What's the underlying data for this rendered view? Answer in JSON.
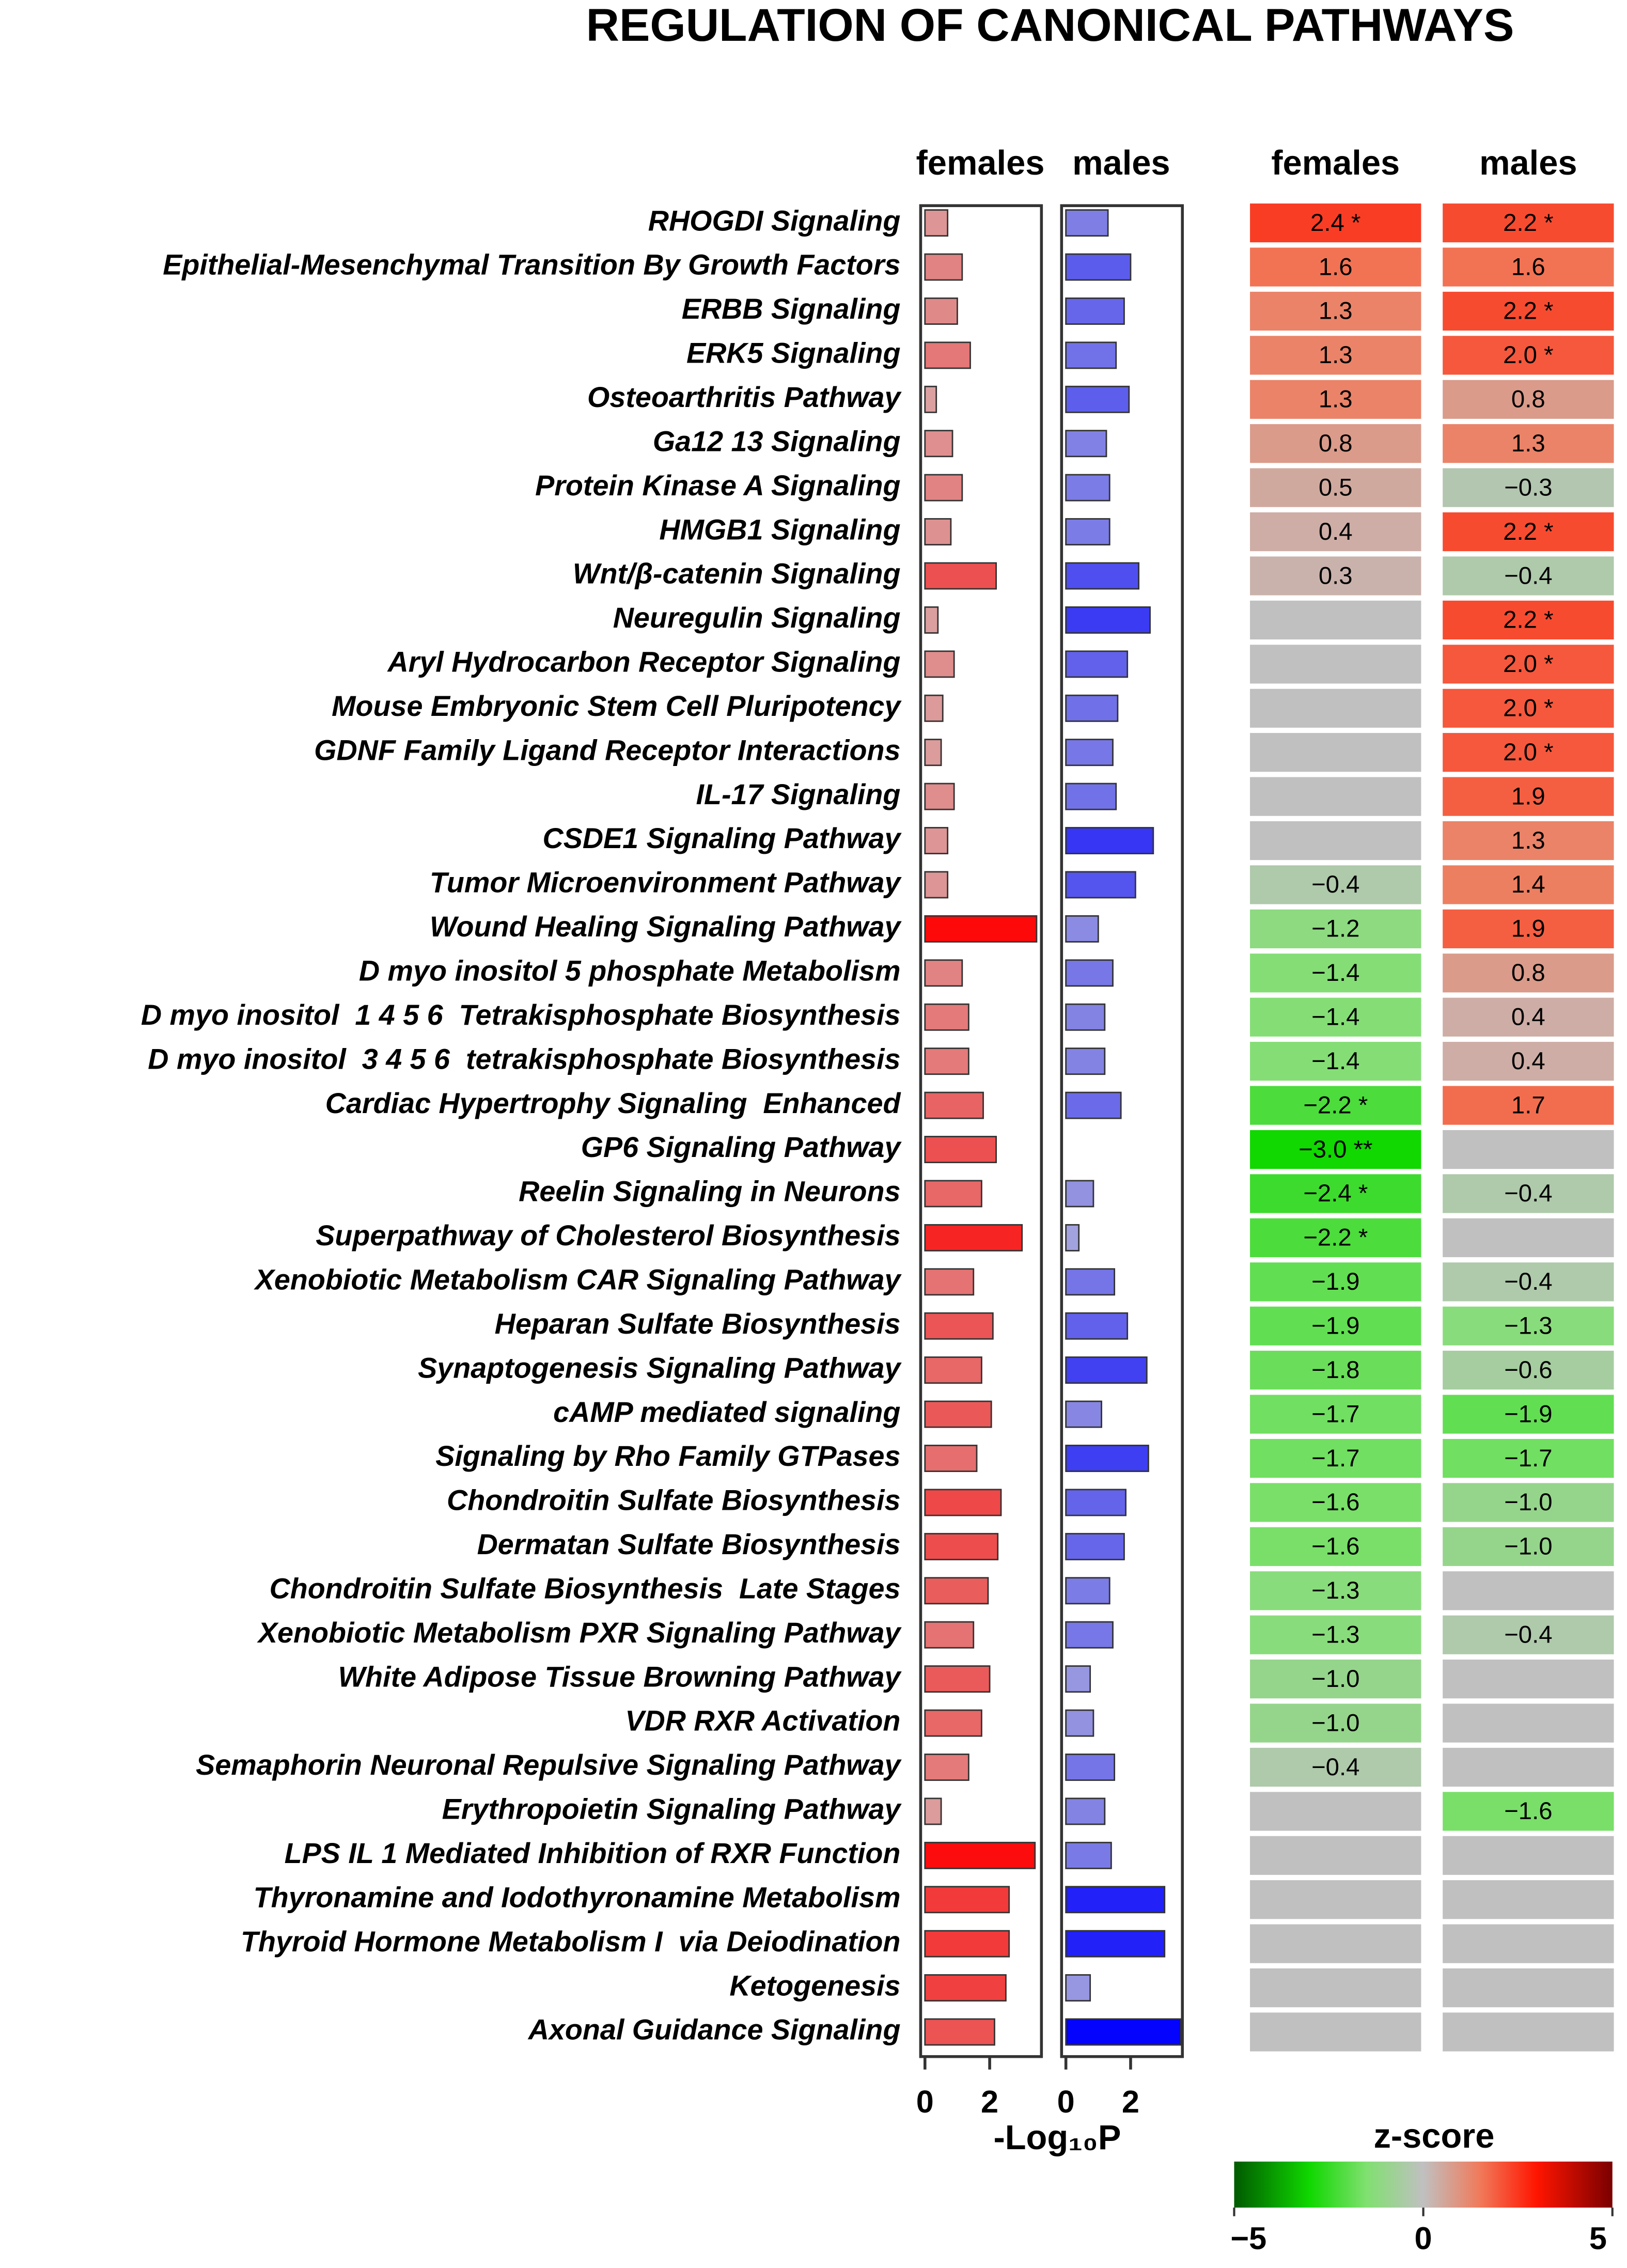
{
  "title": "REGULATION OF CANONICAL PATHWAYS",
  "xlabel": "-Log₁₀P",
  "chart_data": [
    {
      "type": "bar",
      "orientation": "horizontal",
      "title": "females",
      "categories": [
        "RHOGDI Signaling",
        "Epithelial-Mesenchymal Transition By Growth Factors",
        "ERBB Signaling",
        "ERK5 Signaling",
        "Osteoarthritis Pathway",
        "Ga12 13 Signaling",
        "Protein Kinase A Signaling",
        "HMGB1 Signaling",
        "Wnt/β-catenin Signaling",
        "Neuregulin Signaling",
        "Aryl Hydrocarbon Receptor Signaling",
        "Mouse Embryonic Stem Cell Pluripotency",
        "GDNF Family Ligand Receptor Interactions",
        "IL-17 Signaling",
        "CSDE1 Signaling Pathway",
        "Tumor Microenvironment Pathway",
        "Wound Healing Signaling Pathway",
        "D myo inositol 5 phosphate Metabolism",
        "D myo inositol  1 4 5 6  Tetrakisphosphate Biosynthesis",
        "D myo inositol  3 4 5 6  tetrakisphosphate Biosynthesis",
        "Cardiac Hypertrophy Signaling  Enhanced",
        "GP6 Signaling Pathway",
        "Reelin Signaling in Neurons",
        "Superpathway of Cholesterol Biosynthesis",
        "Xenobiotic Metabolism CAR Signaling Pathway",
        "Heparan Sulfate Biosynthesis",
        "Synaptogenesis Signaling Pathway",
        "cAMP mediated signaling",
        "Signaling by Rho Family GTPases",
        "Chondroitin Sulfate Biosynthesis",
        "Dermatan Sulfate Biosynthesis",
        "Chondroitin Sulfate Biosynthesis  Late Stages",
        "Xenobiotic Metabolism PXR Signaling Pathway",
        "White Adipose Tissue Browning Pathway",
        "VDR RXR Activation",
        "Semaphorin Neuronal Repulsive Signaling Pathway",
        "Erythropoietin Signaling Pathway",
        "LPS IL 1 Mediated Inhibition of RXR Function",
        "Thyronamine and Iodothyronamine Metabolism",
        "Thyroid Hormone Metabolism I  via Deiodination",
        "Ketogenesis",
        "Axonal Guidance Signaling"
      ],
      "values": [
        0.7,
        1.15,
        1.0,
        1.4,
        0.35,
        0.85,
        1.15,
        0.8,
        2.2,
        0.4,
        0.9,
        0.55,
        0.5,
        0.9,
        0.7,
        0.7,
        3.45,
        1.15,
        1.35,
        1.35,
        1.8,
        2.2,
        1.75,
        3.0,
        1.5,
        2.1,
        1.75,
        2.05,
        1.6,
        2.35,
        2.25,
        1.95,
        1.5,
        2.0,
        1.75,
        1.35,
        0.5,
        3.4,
        2.6,
        2.6,
        2.5,
        2.15
      ],
      "color_range": [
        "#d9a9a9",
        "#ff0000"
      ],
      "xlim": [
        0,
        3.6
      ],
      "xticks": [
        0,
        2
      ]
    },
    {
      "type": "bar",
      "orientation": "horizontal",
      "title": "males",
      "values": [
        1.3,
        2.0,
        1.8,
        1.55,
        1.95,
        1.25,
        1.35,
        1.35,
        2.25,
        2.6,
        1.9,
        1.6,
        1.45,
        1.55,
        2.7,
        2.15,
        1.0,
        1.45,
        1.2,
        1.2,
        1.7,
        null,
        0.85,
        0.4,
        1.5,
        1.9,
        2.5,
        1.1,
        2.55,
        1.85,
        1.8,
        1.35,
        1.45,
        0.75,
        0.85,
        1.5,
        1.2,
        1.4,
        3.05,
        3.05,
        0.75,
        3.55
      ],
      "color_range": [
        "#acacdc",
        "#0000ff"
      ],
      "xlim": [
        0,
        3.6
      ],
      "xticks": [
        0,
        2
      ]
    },
    {
      "type": "heatmap",
      "series": [
        {
          "name": "females",
          "values": [
            2.4,
            1.6,
            1.3,
            1.3,
            1.3,
            0.8,
            0.5,
            0.4,
            0.3,
            null,
            null,
            null,
            null,
            null,
            null,
            -0.4,
            -1.2,
            -1.4,
            -1.4,
            -1.4,
            -2.2,
            -3.0,
            -2.4,
            -2.2,
            -1.9,
            -1.9,
            -1.8,
            -1.7,
            -1.7,
            -1.6,
            -1.6,
            -1.3,
            -1.3,
            -1.0,
            -1.0,
            -0.4,
            null,
            null,
            null,
            null,
            null,
            null
          ],
          "value_labels": [
            "2.4 *",
            "1.6",
            "1.3",
            "1.3",
            "1.3",
            "0.8",
            "0.5",
            "0.4",
            "0.3",
            null,
            null,
            null,
            null,
            null,
            null,
            "−0.4",
            "−1.2",
            "−1.4",
            "−1.4",
            "−1.4",
            "−2.2 *",
            "−3.0 **",
            "−2.4 *",
            "−2.2 *",
            "−1.9",
            "−1.9",
            "−1.8",
            "−1.7",
            "−1.7",
            "−1.6",
            "−1.6",
            "−1.3",
            "−1.3",
            "−1.0",
            "−1.0",
            "−0.4",
            null,
            null,
            null,
            null,
            null,
            null
          ]
        },
        {
          "name": "males",
          "values": [
            2.2,
            1.6,
            2.2,
            2.0,
            0.8,
            1.3,
            -0.3,
            2.2,
            -0.4,
            2.2,
            2.0,
            2.0,
            2.0,
            1.9,
            1.3,
            1.4,
            1.9,
            0.8,
            0.4,
            0.4,
            1.7,
            null,
            -0.4,
            null,
            -0.4,
            -1.3,
            -0.6,
            -1.9,
            -1.7,
            -1.0,
            -1.0,
            null,
            -0.4,
            null,
            null,
            null,
            -1.6,
            null,
            null,
            null,
            null,
            null
          ],
          "value_labels": [
            "2.2 *",
            "1.6",
            "2.2 *",
            "2.0 *",
            "0.8",
            "1.3",
            "−0.3",
            "2.2 *",
            "−0.4",
            "2.2 *",
            "2.0 *",
            "2.0 *",
            "2.0 *",
            "1.9",
            "1.3",
            "1.4",
            "1.9",
            "0.8",
            "0.4",
            "0.4",
            "1.7",
            null,
            "−0.4",
            null,
            "−0.4",
            "−1.3",
            "−0.6",
            "−1.9",
            "−1.7",
            "−1.0",
            "−1.0",
            null,
            "−0.4",
            null,
            null,
            null,
            "−1.6",
            null,
            null,
            null,
            null,
            null
          ]
        }
      ],
      "colorbar_label": "z-score",
      "zlim": [
        -5,
        5
      ],
      "zticks": [
        {
          "value": -5,
          "label": "−5"
        },
        0,
        5
      ],
      "colorscale": [
        [
          -5,
          "#005a00"
        ],
        [
          -3,
          "#10d800"
        ],
        [
          -1.5,
          "#80e070"
        ],
        [
          0,
          "#c0c0c0"
        ],
        [
          1.5,
          "#f07a5a"
        ],
        [
          3,
          "#ff1500"
        ],
        [
          5,
          "#7a0000"
        ]
      ],
      "na_color": "#c0c0c0"
    }
  ]
}
